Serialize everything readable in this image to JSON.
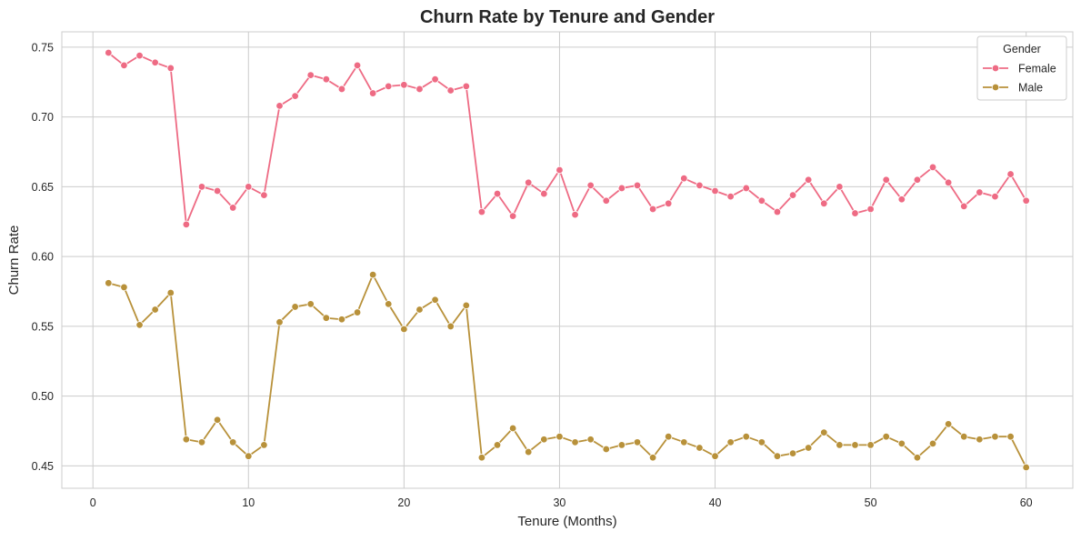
{
  "chart_data": {
    "type": "line",
    "title": "Churn Rate by Tenure and Gender",
    "xlabel": "Tenure (Months)",
    "ylabel": "Churn Rate",
    "xlim": [
      -2,
      63
    ],
    "ylim": [
      0.434,
      0.761
    ],
    "xticks": [
      0,
      10,
      20,
      30,
      40,
      50,
      60
    ],
    "yticks": [
      0.45,
      0.5,
      0.55,
      0.6,
      0.65,
      0.7,
      0.75
    ],
    "ytick_labels": [
      "0.45",
      "0.50",
      "0.55",
      "0.60",
      "0.65",
      "0.70",
      "0.75"
    ],
    "grid": true,
    "legend": {
      "title": "Gender",
      "placement": "top-right"
    },
    "x": [
      1,
      2,
      3,
      4,
      5,
      6,
      7,
      8,
      9,
      10,
      11,
      12,
      13,
      14,
      15,
      16,
      17,
      18,
      19,
      20,
      21,
      22,
      23,
      24,
      25,
      26,
      27,
      28,
      29,
      30,
      31,
      32,
      33,
      34,
      35,
      36,
      37,
      38,
      39,
      40,
      41,
      42,
      43,
      44,
      45,
      46,
      47,
      48,
      49,
      50,
      51,
      52,
      53,
      54,
      55,
      56,
      57,
      58,
      59,
      60
    ],
    "series": [
      {
        "name": "Female",
        "color": "#ee6b84",
        "values": [
          0.746,
          0.737,
          0.744,
          0.739,
          0.735,
          0.623,
          0.65,
          0.647,
          0.635,
          0.65,
          0.644,
          0.708,
          0.715,
          0.73,
          0.727,
          0.72,
          0.737,
          0.717,
          0.722,
          0.723,
          0.72,
          0.727,
          0.719,
          0.722,
          0.632,
          0.645,
          0.629,
          0.653,
          0.645,
          0.662,
          0.63,
          0.651,
          0.64,
          0.649,
          0.651,
          0.634,
          0.638,
          0.656,
          0.651,
          0.647,
          0.643,
          0.649,
          0.64,
          0.632,
          0.644,
          0.655,
          0.638,
          0.65,
          0.631,
          0.634,
          0.655,
          0.641,
          0.655,
          0.664,
          0.653,
          0.636,
          0.646,
          0.643,
          0.659,
          0.64
        ]
      },
      {
        "name": "Male",
        "color": "#b8913a",
        "values": [
          0.581,
          0.578,
          0.551,
          0.562,
          0.574,
          0.469,
          0.467,
          0.483,
          0.467,
          0.457,
          0.465,
          0.553,
          0.564,
          0.566,
          0.556,
          0.555,
          0.56,
          0.587,
          0.566,
          0.548,
          0.562,
          0.569,
          0.55,
          0.565,
          0.456,
          0.465,
          0.477,
          0.46,
          0.469,
          0.471,
          0.467,
          0.469,
          0.462,
          0.465,
          0.467,
          0.456,
          0.471,
          0.467,
          0.463,
          0.457,
          0.467,
          0.471,
          0.467,
          0.457,
          0.459,
          0.463,
          0.474,
          0.465,
          0.465,
          0.465,
          0.471,
          0.466,
          0.456,
          0.466,
          0.48,
          0.471,
          0.469,
          0.471,
          0.471,
          0.449
        ]
      }
    ]
  }
}
